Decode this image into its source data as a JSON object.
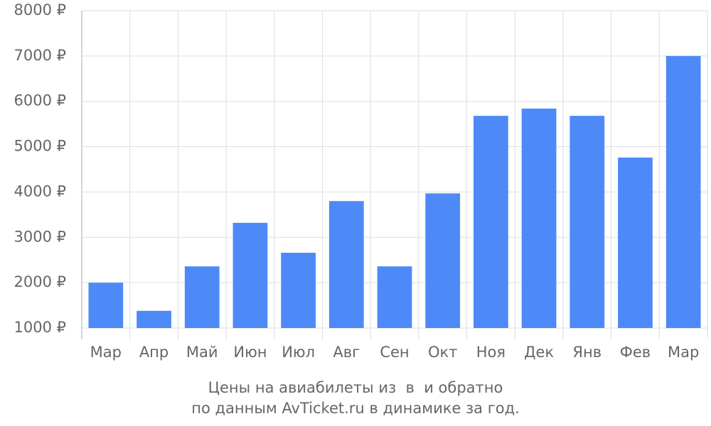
{
  "chart_data": {
    "type": "bar",
    "title": "Цены на авиабилеты из  в  и обратно",
    "subtitle": "по данным AvTicket.ru в динамике за год.",
    "categories": [
      "Мар",
      "Апр",
      "Май",
      "Июн",
      "Июл",
      "Авг",
      "Сен",
      "Окт",
      "Ноя",
      "Дек",
      "Янв",
      "Фев",
      "Мар"
    ],
    "values": [
      2000,
      1380,
      2360,
      3320,
      2660,
      3800,
      2360,
      3970,
      5680,
      5840,
      5680,
      4760,
      7000
    ],
    "color": "#4d8af8",
    "ylim": [
      1000,
      8000
    ],
    "yticks": [
      {
        "value": 1000,
        "label": "1000 ₽"
      },
      {
        "value": 2000,
        "label": "2000 ₽"
      },
      {
        "value": 3000,
        "label": "3000 ₽"
      },
      {
        "value": 4000,
        "label": "4000 ₽"
      },
      {
        "value": 5000,
        "label": "5000 ₽"
      },
      {
        "value": 6000,
        "label": "6000 ₽"
      },
      {
        "value": 7000,
        "label": "7000 ₽"
      },
      {
        "value": 8000,
        "label": "8000 ₽"
      }
    ],
    "grid": true
  }
}
